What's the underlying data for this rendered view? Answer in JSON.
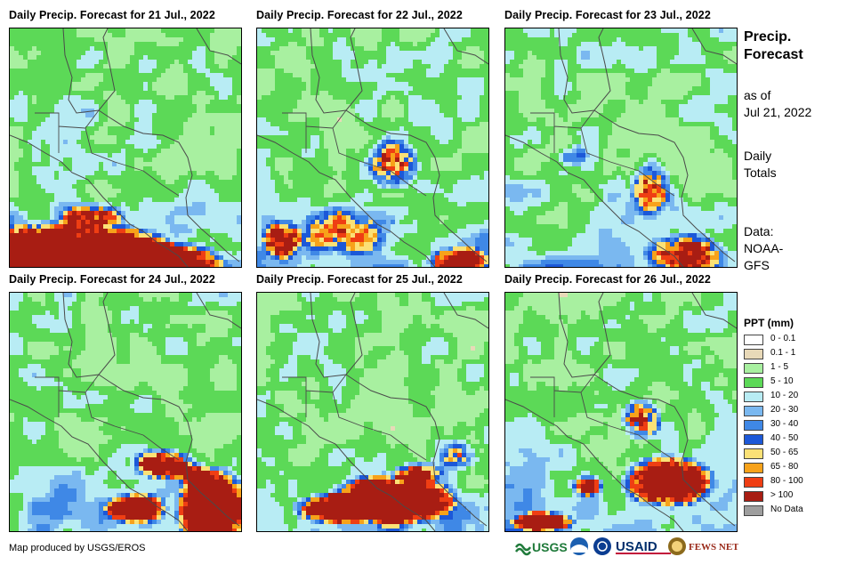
{
  "panels": [
    {
      "title": "Daily Precip. Forecast for 21 Jul., 2022"
    },
    {
      "title": "Daily Precip. Forecast for 22 Jul., 2022"
    },
    {
      "title": "Daily Precip. Forecast for 23 Jul., 2022"
    },
    {
      "title": "Daily Precip. Forecast for 24 Jul., 2022"
    },
    {
      "title": "Daily Precip. Forecast for 25 Jul., 2022"
    },
    {
      "title": "Daily Precip. Forecast for 26 Jul., 2022"
    }
  ],
  "sidebar": {
    "title_line1": "Precip.",
    "title_line2": "Forecast",
    "asof_line1": "as of",
    "asof_line2": "Jul 21, 2022",
    "totals_line1": "Daily",
    "totals_line2": "Totals",
    "source_line1": "Data:",
    "source_line2": "NOAA-",
    "source_line3": "GFS"
  },
  "legend": {
    "title": "PPT (mm)",
    "items": [
      {
        "label": "0 - 0.1",
        "color": "#ffffff"
      },
      {
        "label": "0.1 - 1",
        "color": "#e8d9b8"
      },
      {
        "label": "1 - 5",
        "color": "#a8f0a0"
      },
      {
        "label": "5 - 10",
        "color": "#5cd957"
      },
      {
        "label": "10 - 20",
        "color": "#b8ecf4"
      },
      {
        "label": "20 - 30",
        "color": "#7ab8f0"
      },
      {
        "label": "30 - 40",
        "color": "#3f88e6"
      },
      {
        "label": "40 - 50",
        "color": "#1c58d8"
      },
      {
        "label": "50 - 65",
        "color": "#fbe176"
      },
      {
        "label": "65 - 80",
        "color": "#f7a21a"
      },
      {
        "label": "80 - 100",
        "color": "#ef3e13"
      },
      {
        "label": "> 100",
        "color": "#a81d13"
      },
      {
        "label": "No Data",
        "color": "#9e9e9e"
      }
    ]
  },
  "credit": "Map produced by USGS/EROS",
  "logos": [
    {
      "name": "usgs-logo",
      "text": "USGS"
    },
    {
      "name": "noaa-logo",
      "text": ""
    },
    {
      "name": "nasa-logo",
      "text": ""
    },
    {
      "name": "usaid-logo",
      "text": "USAID"
    },
    {
      "name": "fewsnet-logo",
      "text": "FEWS NET"
    }
  ]
}
